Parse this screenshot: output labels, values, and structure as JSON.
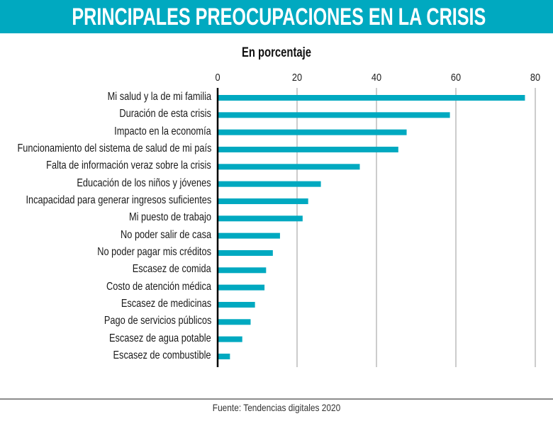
{
  "title": "PRINCIPALES PREOCUPACIONES EN LA CRISIS",
  "source": "Fuente:  Tendencias digitales 2020",
  "colors": {
    "header": "#00a9c0",
    "bar": "#00a9c0",
    "grid": "#999999",
    "axis": "#000000"
  },
  "chart_data": {
    "type": "bar",
    "orientation": "horizontal",
    "title": "PRINCIPALES PREOCUPACIONES EN LA CRISIS",
    "subtitle": "En porcentaje",
    "xlim": [
      0,
      80
    ],
    "xticks": [
      "0",
      "20",
      "40",
      "60",
      "80"
    ],
    "grid": true,
    "categories": [
      "Mi salud y la de mi familia",
      "Duración de esta crisis",
      "Impacto en la economía",
      "Funcionamiento del sistema de salud de mi país",
      "Falta de información veraz sobre la crisis",
      "Educación de los niños y jóvenes",
      "Incapacidad para generar ingresos suficientes",
      "Mi puesto de trabajo",
      "No poder salir de casa",
      "No poder pagar mis créditos",
      "Escasez de comida",
      "Costo de atención médica",
      "Escasez de medicinas",
      "Pago de servicios públicos",
      "Escasez de agua potable",
      "Escasez de combustible"
    ],
    "values": [
      77.4,
      58.5,
      47.6,
      45.5,
      35.8,
      26.0,
      22.8,
      21.4,
      15.7,
      13.9,
      12.2,
      11.8,
      9.4,
      8.3,
      6.2,
      3.1
    ]
  }
}
